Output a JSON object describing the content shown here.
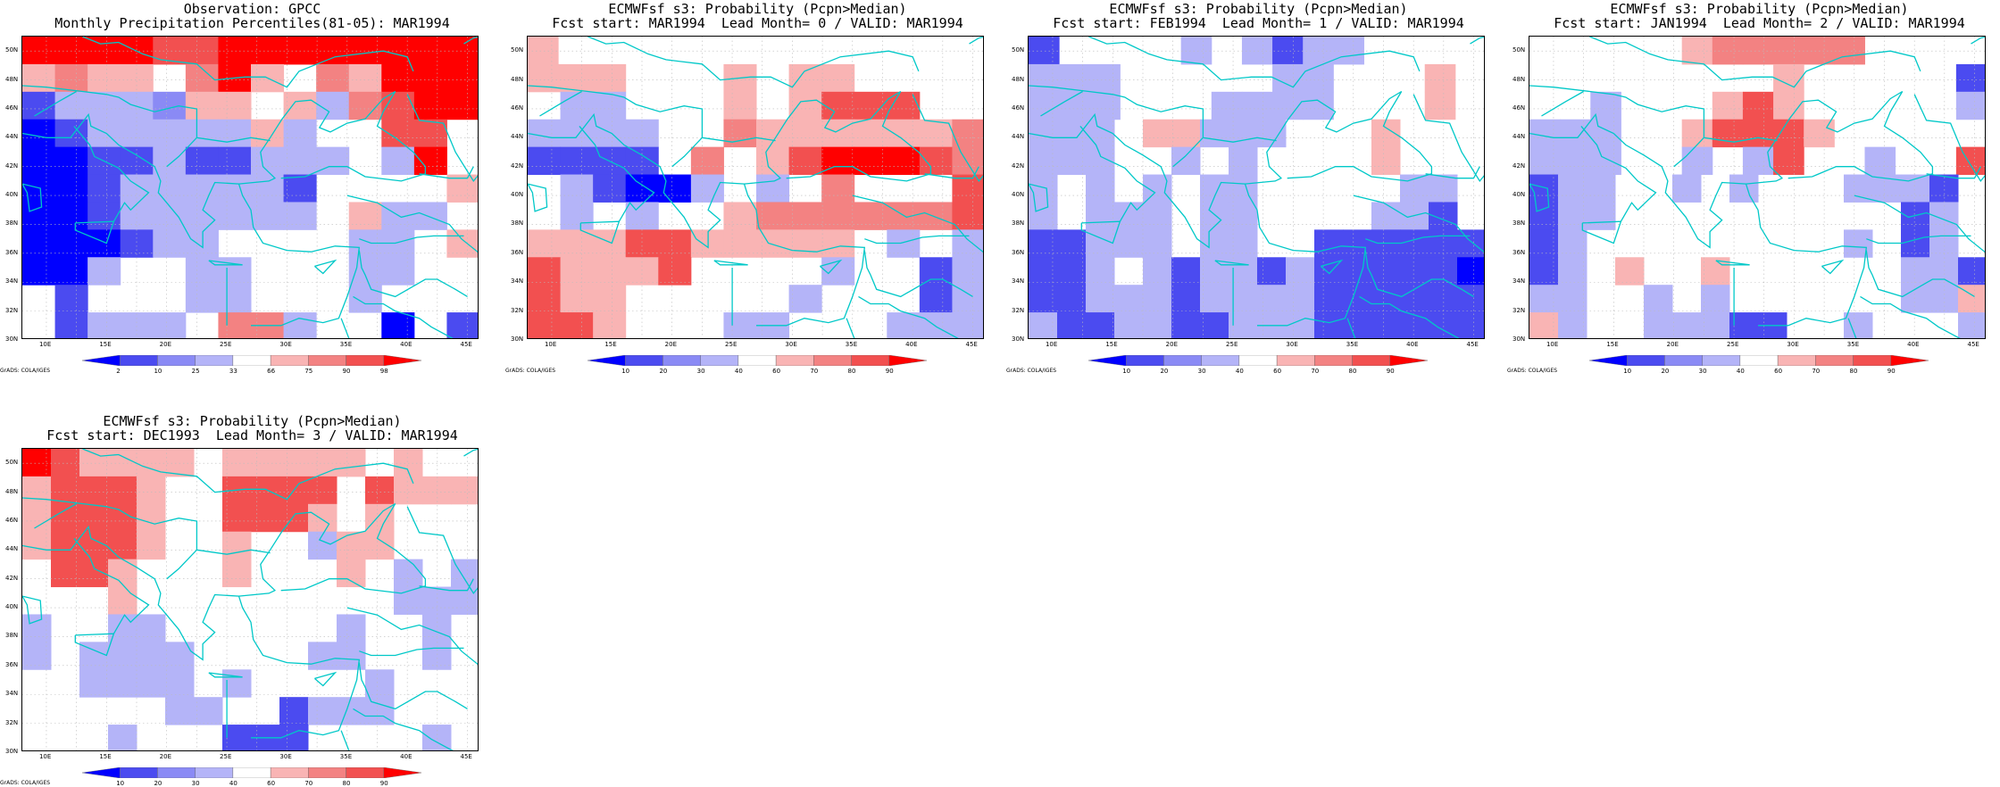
{
  "palette": {
    "deep_blue": "#0000ff",
    "mid_blue": "#4b4bf0",
    "light_blue": "#8a8af5",
    "pale_blue": "#b4b4f8",
    "white": "#ffffff",
    "pale_red": "#f9b4b4",
    "light_red": "#f38282",
    "mid_red": "#f25050",
    "deep_red": "#ff0000",
    "coast": "#00c8c8",
    "grid": "#bbbbbb"
  },
  "map_axes": {
    "lon_labels": [
      "10E",
      "15E",
      "20E",
      "25E",
      "30E",
      "35E",
      "40E",
      "45E"
    ],
    "lat_labels": [
      "50N",
      "48N",
      "46N",
      "44N",
      "42N",
      "40N",
      "38N",
      "36N",
      "34N",
      "32N",
      "30N"
    ],
    "lon_range": [
      8,
      46
    ],
    "lat_range": [
      30,
      51
    ]
  },
  "credit": "GrADS: COLA/IGES",
  "panels": [
    {
      "title1": "Observation: GPCC",
      "title2": "Monthly Precipitation Percentiles(81-05): MAR1994",
      "colorbar_labels": [
        "2",
        "10",
        "25",
        "33",
        "66",
        "75",
        "90",
        "98"
      ],
      "grid_levels": [
        "RRRRMMRRRRRRRR",
        "rLlrwmRrwmrRRR",
        "BbbbplrwlbmMRR",
        "DBbbbbblbwwMMw",
        "DDBBbBBbbbwbRw",
        "DDBbbbbbBwwwwl",
        "DDBbbbbbbwlbbw",
        "DDDBbbwwwwbbwl",
        "DDbwwbbwwwbbww",
        "wBwwwbbwwwbwww",
        "wBbbbwmmbwwDwB"
      ]
    },
    {
      "title1": "ECMWFsf s3: Probability (Pcpn>Median)",
      "title2": "Fcst start: MAR1994  Lead Month= 0 / VALID: MAR1994",
      "colorbar_labels": [
        "10",
        "20",
        "30",
        "40",
        "60",
        "70",
        "80",
        "90"
      ],
      "grid_levels": [
        "lwwwwwwwwwwwwww",
        "lllwwwlwllwwww",
        "wbbwwwlwlMMMww",
        "bbbbwwmllrrllm",
        "BBBBwmwlMRRRMm",
        "wbBDDbwbwmwwwM",
        "wbwbwwlmmmmmmM",
        "lllMMlllllwbwb",
        "MlllMwwwwbwwBb",
        "MllwwwwwbwwwBb",
        "MMlwwwbbwwwbbb"
      ]
    },
    {
      "title1": "ECMWFsf s3: Probability (Pcpn>Median)",
      "title2": "Fcst start: FEB1994  Lead Month= 1 / VALID: MAR1994",
      "colorbar_labels": [
        "10",
        "20",
        "30",
        "40",
        "60",
        "70",
        "80",
        "90"
      ],
      "grid_levels": [
        "BwwwwbwbBbbwwww",
        "bbbwwwwwbbwwwlw",
        "bbbwwwbbbbwwwlw",
        "bbbwllbbbwwwlwww",
        "bbbwwbwbwwwwlwww",
        "bwbwbwbbwwwwwbbw",
        "bwbbbwbbwwwwbbBw",
        "BBbbbwbbwwBBBBBB",
        "BBbwbBbbBbBBBBBD",
        "BBbbbBbbbbBBBBBB",
        "bBBbbBBbbbBBBBBB"
      ]
    },
    {
      "title1": "ECMWFsf s3: Probability (Pcpn>Median)",
      "title2": "Fcst start: JAN1994  Lead Month= 2 / VALID: MAR1994",
      "colorbar_labels": [
        "10",
        "20",
        "30",
        "40",
        "60",
        "70",
        "80",
        "90"
      ],
      "grid_levels": [
        "wwwwwlLLLLLwwww",
        "wwwwwwwwlwwwwwB",
        "wwbwwwlMlwwwwwb",
        "bbbwwlMMMlwwwww",
        "bbbwwbwbMwwbwwM",
        "BbbwwbwbwwwbbbBw",
        "BbbwwwwwwwwwwBbw",
        "BbwwwwwwwwwbwBbw",
        "BbwlwwlwwwwwwbbB",
        "bbwwbwbwwwwwwbbl",
        "lbwwbbbBBwwbwwwb"
      ]
    },
    {
      "title1": "ECMWFsf s3: Probability (Pcpn>Median)",
      "title2": "Fcst start: DEC1993  Lead Month= 3 / VALID: MAR1994",
      "colorbar_labels": [
        "10",
        "20",
        "30",
        "40",
        "60",
        "70",
        "80",
        "90"
      ],
      "grid_levels": [
        "RMllllwlllllwlww",
        "lMMMlwwMMMMwMlll",
        "lMMMlwwMMMlwlwww",
        "lMMMlwwlwwbllwww",
        "wMMlwwwlwwwlwbwb",
        "wwwlwwwwwwwwwbbb",
        "bwwbbwwwwwwbwwbw",
        "bwbbbbwwwwbbwwbw",
        "wwbbbbwbwwwwbwww",
        "wwwwwbbwwBbbbwww",
        "wwwbwwwBBBwwwwbw"
      ]
    }
  ]
}
